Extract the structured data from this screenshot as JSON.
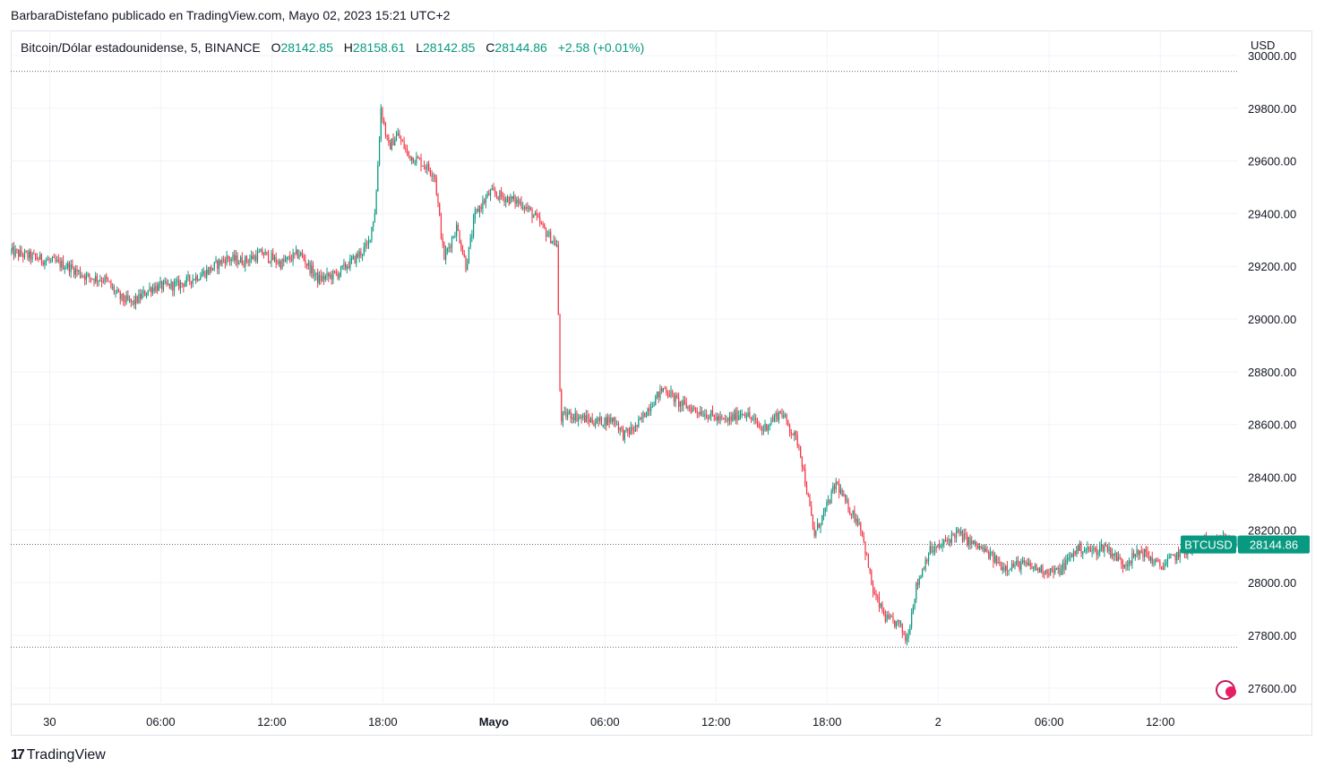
{
  "header": {
    "publisher_line": "BarbaraDistefano publicado en TradingView.com, Mayo 02, 2023 15:21 UTC+2"
  },
  "legend": {
    "symbol": "Bitcoin/Dólar estadounidense, 5, BINANCE",
    "o_label": "O",
    "o_value": "28142.85",
    "h_label": "H",
    "h_value": "28158.61",
    "l_label": "L",
    "l_value": "28142.85",
    "c_label": "C",
    "c_value": "28144.86",
    "change": "+2.58 (+0.01%)"
  },
  "currency": "USD",
  "footer": {
    "brand": "TradingView",
    "logo": "17"
  },
  "price_label": {
    "ticker": "BTCUSD",
    "price": "28144.86",
    "color": "#089981"
  },
  "colors": {
    "up": "#089981",
    "down": "#f23645",
    "grid": "#f0f3fa",
    "text": "#131722"
  },
  "chart_data": {
    "type": "candlestick",
    "y_ticks": [
      27600,
      27800,
      28000,
      28200,
      28400,
      28600,
      28800,
      29000,
      29200,
      29400,
      29600,
      29800,
      30000
    ],
    "y_tick_labels": [
      "27600.00",
      "27800.00",
      "28000.00",
      "28200.00",
      "28400.00",
      "28600.00",
      "28800.00",
      "29000.00",
      "29200.00",
      "29400.00",
      "29600.00",
      "29800.00",
      "30000.00"
    ],
    "ylim": [
      27545,
      30095
    ],
    "x_labels": [
      "30",
      "06:00",
      "12:00",
      "18:00",
      "Mayo",
      "06:00",
      "12:00",
      "18:00",
      "2",
      "06:00",
      "12:00"
    ],
    "x_label_hours": [
      0,
      6,
      12,
      18,
      24,
      30,
      36,
      42,
      48,
      54,
      60
    ],
    "x_range_hours": [
      -2.1,
      64.2
    ],
    "reference_lines": [
      29940,
      28145,
      27755
    ],
    "last_price": 28144.86,
    "series_anchors": [
      [
        -2.1,
        29255
      ],
      [
        0.0,
        29220
      ],
      [
        1.0,
        29200
      ],
      [
        2.0,
        29160
      ],
      [
        3.0,
        29150
      ],
      [
        3.8,
        29080
      ],
      [
        4.5,
        29060
      ],
      [
        5.5,
        29120
      ],
      [
        7.0,
        29130
      ],
      [
        8.5,
        29180
      ],
      [
        9.5,
        29230
      ],
      [
        10.5,
        29220
      ],
      [
        11.5,
        29250
      ],
      [
        12.5,
        29210
      ],
      [
        13.5,
        29250
      ],
      [
        14.5,
        29150
      ],
      [
        15.5,
        29170
      ],
      [
        16.5,
        29230
      ],
      [
        17.2,
        29280
      ],
      [
        17.6,
        29420
      ],
      [
        17.9,
        29800
      ],
      [
        18.3,
        29650
      ],
      [
        18.8,
        29700
      ],
      [
        19.4,
        29620
      ],
      [
        20.0,
        29600
      ],
      [
        20.8,
        29550
      ],
      [
        21.3,
        29230
      ],
      [
        22.0,
        29350
      ],
      [
        22.5,
        29200
      ],
      [
        23.0,
        29400
      ],
      [
        23.8,
        29480
      ],
      [
        24.6,
        29460
      ],
      [
        25.5,
        29440
      ],
      [
        26.2,
        29390
      ],
      [
        26.8,
        29330
      ],
      [
        27.4,
        29280
      ],
      [
        27.6,
        28620
      ],
      [
        28.0,
        28640
      ],
      [
        29.5,
        28610
      ],
      [
        30.5,
        28620
      ],
      [
        31.0,
        28560
      ],
      [
        31.7,
        28590
      ],
      [
        32.5,
        28680
      ],
      [
        33.2,
        28740
      ],
      [
        34.0,
        28680
      ],
      [
        35.5,
        28640
      ],
      [
        36.5,
        28610
      ],
      [
        37.5,
        28650
      ],
      [
        38.5,
        28580
      ],
      [
        39.5,
        28650
      ],
      [
        40.5,
        28520
      ],
      [
        41.3,
        28180
      ],
      [
        42.0,
        28290
      ],
      [
        42.5,
        28380
      ],
      [
        43.0,
        28300
      ],
      [
        43.8,
        28220
      ],
      [
        44.5,
        27960
      ],
      [
        45.2,
        27860
      ],
      [
        45.9,
        27840
      ],
      [
        46.3,
        27780
      ],
      [
        46.8,
        27980
      ],
      [
        47.5,
        28120
      ],
      [
        48.0,
        28130
      ],
      [
        49.0,
        28190
      ],
      [
        49.8,
        28150
      ],
      [
        50.5,
        28120
      ],
      [
        51.5,
        28060
      ],
      [
        52.5,
        28070
      ],
      [
        53.5,
        28050
      ],
      [
        54.5,
        28040
      ],
      [
        55.5,
        28130
      ],
      [
        56.5,
        28120
      ],
      [
        57.0,
        28140
      ],
      [
        58.0,
        28070
      ],
      [
        59.0,
        28120
      ],
      [
        60.0,
        28060
      ],
      [
        61.0,
        28110
      ],
      [
        62.0,
        28140
      ],
      [
        63.0,
        28170
      ],
      [
        64.2,
        28145
      ]
    ]
  }
}
